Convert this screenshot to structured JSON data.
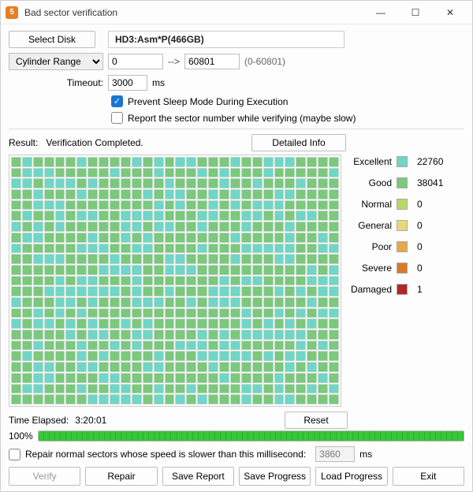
{
  "window": {
    "title": "Bad sector verification"
  },
  "topbar": {
    "select_disk": "Select Disk",
    "disk_label": "HD3:Asm*P(466GB)"
  },
  "range": {
    "mode_label": "Cylinder Range",
    "from": "0",
    "arrow": "-->",
    "to": "60801",
    "hint": "(0-60801)"
  },
  "timeout": {
    "label": "Timeout:",
    "value": "3000",
    "unit": "ms"
  },
  "options": {
    "prevent_sleep": "Prevent Sleep Mode During Execution",
    "report_sector": "Report the sector number while verifying (maybe slow)"
  },
  "result": {
    "label": "Result:",
    "text": "Verification Completed.",
    "detailed_btn": "Detailed Info"
  },
  "grid": {
    "cols": 30,
    "rows": 23,
    "colors": {
      "excellent": "#6fd6c8",
      "good": "#7cc87c"
    },
    "border_color": "#c0d8c8"
  },
  "legend": [
    {
      "label": "Excellent",
      "color": "#6fd6c8",
      "count": "22760"
    },
    {
      "label": "Good",
      "color": "#7cc87c",
      "count": "38041"
    },
    {
      "label": "Normal",
      "color": "#b8d86a",
      "count": "0"
    },
    {
      "label": "General",
      "color": "#e8d878",
      "count": "0"
    },
    {
      "label": "Poor",
      "color": "#e8a848",
      "count": "0"
    },
    {
      "label": "Severe",
      "color": "#d87a2a",
      "count": "0"
    },
    {
      "label": "Damaged",
      "color": "#b02828",
      "count": "1"
    }
  ],
  "time": {
    "label": "Time Elapsed:",
    "value": "3:20:01",
    "reset_btn": "Reset"
  },
  "progress": {
    "percent_label": "100%",
    "fill_pct": 100
  },
  "repair": {
    "label": "Repair normal sectors whose speed is slower than this millisecond:",
    "value": "3860",
    "unit": "ms"
  },
  "footer": {
    "verify": "Verify",
    "repair": "Repair",
    "save_report": "Save Report",
    "save_progress": "Save Progress",
    "load_progress": "Load Progress",
    "exit": "Exit"
  }
}
